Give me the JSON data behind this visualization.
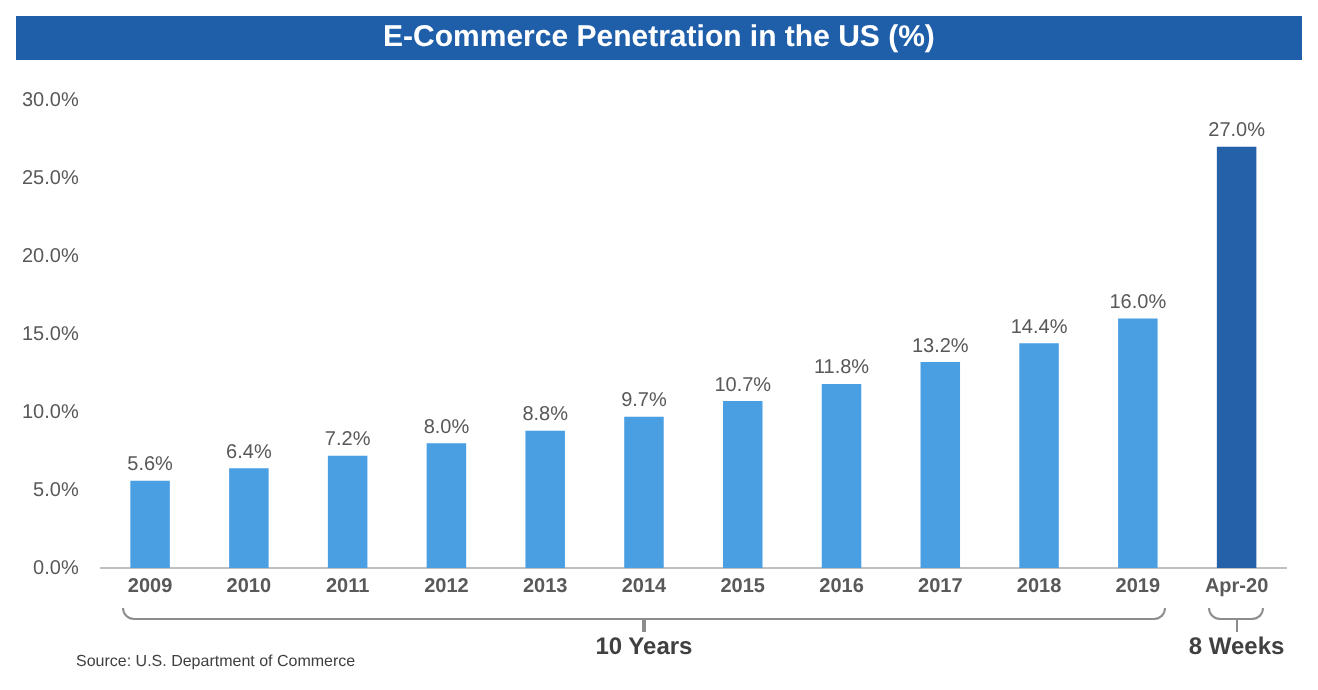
{
  "chart_data": {
    "type": "bar",
    "title": "E-Commerce Penetration in the US (%)",
    "categories": [
      "2009",
      "2010",
      "2011",
      "2012",
      "2013",
      "2014",
      "2015",
      "2016",
      "2017",
      "2018",
      "2019",
      "Apr-20"
    ],
    "values": [
      5.6,
      6.4,
      7.2,
      8.0,
      8.8,
      9.7,
      10.7,
      11.8,
      13.2,
      14.4,
      16.0,
      27.0
    ],
    "colors": [
      "#4a9fe3",
      "#4a9fe3",
      "#4a9fe3",
      "#4a9fe3",
      "#4a9fe3",
      "#4a9fe3",
      "#4a9fe3",
      "#4a9fe3",
      "#4a9fe3",
      "#4a9fe3",
      "#4a9fe3",
      "#2461a8"
    ],
    "value_labels": [
      "5.6%",
      "6.4%",
      "7.2%",
      "8.0%",
      "8.8%",
      "9.7%",
      "10.7%",
      "11.8%",
      "13.2%",
      "14.4%",
      "16.0%",
      "27.0%"
    ],
    "ylim": [
      0,
      30
    ],
    "yticks": [
      {
        "value": 0,
        "label": "0.0%"
      },
      {
        "value": 5,
        "label": "5.0%"
      },
      {
        "value": 10,
        "label": "10.0%"
      },
      {
        "value": 15,
        "label": "15.0%"
      },
      {
        "value": 20,
        "label": "20.0%"
      },
      {
        "value": 25,
        "label": "25.0%"
      },
      {
        "value": 30,
        "label": "30.0%"
      }
    ],
    "grid": false,
    "legend": false,
    "annotations": [
      "10 Years",
      "8 Weeks",
      "Source: U.S. Department of Commerce"
    ]
  }
}
